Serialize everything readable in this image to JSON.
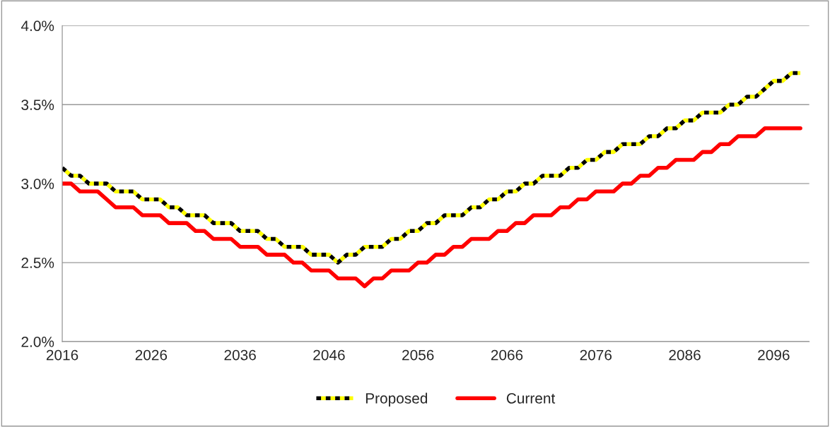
{
  "chart_data": {
    "type": "line",
    "x": [
      2016,
      2017,
      2018,
      2019,
      2020,
      2021,
      2022,
      2023,
      2024,
      2025,
      2026,
      2027,
      2028,
      2029,
      2030,
      2031,
      2032,
      2033,
      2034,
      2035,
      2036,
      2037,
      2038,
      2039,
      2040,
      2041,
      2042,
      2043,
      2044,
      2045,
      2046,
      2047,
      2048,
      2049,
      2050,
      2051,
      2052,
      2053,
      2054,
      2055,
      2056,
      2057,
      2058,
      2059,
      2060,
      2061,
      2062,
      2063,
      2064,
      2065,
      2066,
      2067,
      2068,
      2069,
      2070,
      2071,
      2072,
      2073,
      2074,
      2075,
      2076,
      2077,
      2078,
      2079,
      2080,
      2081,
      2082,
      2083,
      2084,
      2085,
      2086,
      2087,
      2088,
      2089,
      2090,
      2091,
      2092,
      2093,
      2094,
      2095,
      2096,
      2097,
      2098,
      2099
    ],
    "series": [
      {
        "name": "Proposed",
        "color": "#000000",
        "line_style": "dashed",
        "values": [
          3.1,
          3.05,
          3.05,
          3.0,
          3.0,
          3.0,
          2.95,
          2.95,
          2.95,
          2.9,
          2.9,
          2.9,
          2.85,
          2.85,
          2.8,
          2.8,
          2.8,
          2.75,
          2.75,
          2.75,
          2.7,
          2.7,
          2.7,
          2.65,
          2.65,
          2.6,
          2.6,
          2.6,
          2.55,
          2.55,
          2.55,
          2.5,
          2.55,
          2.55,
          2.6,
          2.6,
          2.6,
          2.65,
          2.65,
          2.7,
          2.7,
          2.75,
          2.75,
          2.8,
          2.8,
          2.8,
          2.85,
          2.85,
          2.9,
          2.9,
          2.95,
          2.95,
          3.0,
          3.0,
          3.05,
          3.05,
          3.05,
          3.1,
          3.1,
          3.15,
          3.15,
          3.2,
          3.2,
          3.25,
          3.25,
          3.25,
          3.3,
          3.3,
          3.35,
          3.35,
          3.4,
          3.4,
          3.45,
          3.45,
          3.45,
          3.5,
          3.5,
          3.55,
          3.55,
          3.6,
          3.65,
          3.65,
          3.7,
          3.7
        ]
      },
      {
        "name": "Current",
        "color": "#ff0000",
        "line_style": "solid",
        "values": [
          3.0,
          3.0,
          2.95,
          2.95,
          2.95,
          2.9,
          2.85,
          2.85,
          2.85,
          2.8,
          2.8,
          2.8,
          2.75,
          2.75,
          2.75,
          2.7,
          2.7,
          2.65,
          2.65,
          2.65,
          2.6,
          2.6,
          2.6,
          2.55,
          2.55,
          2.55,
          2.5,
          2.5,
          2.45,
          2.45,
          2.45,
          2.4,
          2.4,
          2.4,
          2.35,
          2.4,
          2.4,
          2.45,
          2.45,
          2.45,
          2.5,
          2.5,
          2.55,
          2.55,
          2.6,
          2.6,
          2.65,
          2.65,
          2.65,
          2.7,
          2.7,
          2.75,
          2.75,
          2.8,
          2.8,
          2.8,
          2.85,
          2.85,
          2.9,
          2.9,
          2.95,
          2.95,
          2.95,
          3.0,
          3.0,
          3.05,
          3.05,
          3.1,
          3.1,
          3.15,
          3.15,
          3.15,
          3.2,
          3.2,
          3.25,
          3.25,
          3.3,
          3.3,
          3.3,
          3.35,
          3.35,
          3.35,
          3.35,
          3.35
        ]
      }
    ],
    "xlim": [
      2016,
      2100
    ],
    "xticks": [
      2016,
      2026,
      2036,
      2046,
      2056,
      2066,
      2076,
      2086,
      2096
    ],
    "ylim": [
      2.0,
      4.0
    ],
    "yticks": [
      {
        "value": 2.0,
        "label": "2.0%"
      },
      {
        "value": 2.5,
        "label": "2.5%"
      },
      {
        "value": 3.0,
        "label": "3.0%"
      },
      {
        "value": 3.5,
        "label": "3.5%"
      },
      {
        "value": 4.0,
        "label": "4.0%"
      }
    ],
    "grid": "y",
    "legend": "bottom",
    "marker": "none"
  }
}
